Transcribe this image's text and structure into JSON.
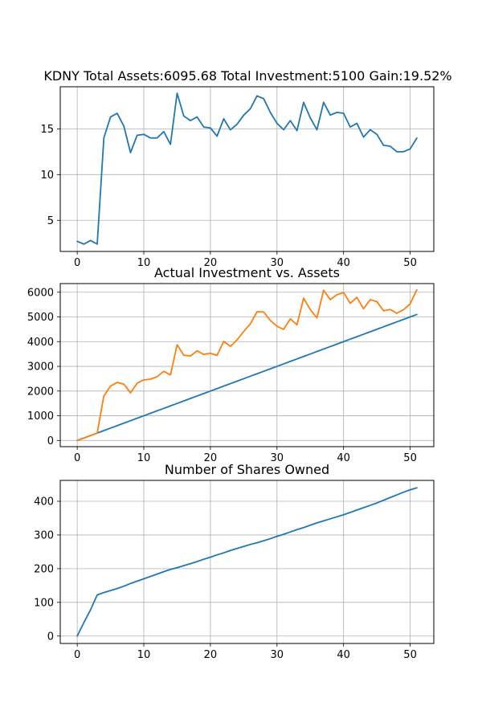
{
  "chart_data": [
    {
      "type": "line",
      "title": "KDNY Total Assets:6095.68  Total Investment:5100  Gain:19.52%",
      "xlabel": "",
      "ylabel": "",
      "xlim": [
        -2.55,
        53.55
      ],
      "ylim": [
        1.6,
        19.6
      ],
      "xticks": [
        0,
        10,
        20,
        30,
        40,
        50
      ],
      "yticks": [
        5,
        10,
        15
      ],
      "grid": true,
      "series": [
        {
          "color": "#1f77b4",
          "x": [
            0,
            1,
            2,
            3,
            4,
            5,
            6,
            7,
            8,
            9,
            10,
            11,
            12,
            13,
            14,
            15,
            16,
            17,
            18,
            19,
            20,
            21,
            22,
            23,
            24,
            25,
            26,
            27,
            28,
            29,
            30,
            31,
            32,
            33,
            34,
            35,
            36,
            37,
            38,
            39,
            40,
            41,
            42,
            43,
            44,
            45,
            46,
            47,
            48,
            49,
            50,
            51
          ],
          "values": [
            2.7,
            2.4,
            2.8,
            2.4,
            14.0,
            16.3,
            16.7,
            15.3,
            12.4,
            14.3,
            14.4,
            14.0,
            14.0,
            14.7,
            13.3,
            18.9,
            16.4,
            15.9,
            16.3,
            15.2,
            15.1,
            14.2,
            16.1,
            14.9,
            15.5,
            16.5,
            17.2,
            18.6,
            18.3,
            16.8,
            15.6,
            14.9,
            15.9,
            14.8,
            17.9,
            16.2,
            14.9,
            17.9,
            16.5,
            16.8,
            16.7,
            15.2,
            15.6,
            14.1,
            14.9,
            14.4,
            13.2,
            13.1,
            12.5,
            12.5,
            12.8,
            14.0
          ]
        }
      ]
    },
    {
      "type": "line",
      "title": "Actual Investment vs. Assets",
      "xlabel": "",
      "ylabel": "",
      "xlim": [
        -2.55,
        53.55
      ],
      "ylim": [
        -250,
        6350
      ],
      "xticks": [
        0,
        10,
        20,
        30,
        40,
        50
      ],
      "yticks": [
        0,
        1000,
        2000,
        3000,
        4000,
        5000,
        6000
      ],
      "grid": true,
      "series": [
        {
          "color": "#1f77b4",
          "x": [
            0,
            1,
            2,
            3,
            4,
            5,
            6,
            7,
            8,
            9,
            10,
            11,
            12,
            13,
            14,
            15,
            16,
            17,
            18,
            19,
            20,
            21,
            22,
            23,
            24,
            25,
            26,
            27,
            28,
            29,
            30,
            31,
            32,
            33,
            34,
            35,
            36,
            37,
            38,
            39,
            40,
            41,
            42,
            43,
            44,
            45,
            46,
            47,
            48,
            49,
            50,
            51
          ],
          "values": [
            0,
            100,
            200,
            300,
            400,
            500,
            600,
            700,
            800,
            900,
            1000,
            1100,
            1200,
            1300,
            1400,
            1500,
            1600,
            1700,
            1800,
            1900,
            2000,
            2100,
            2200,
            2300,
            2400,
            2500,
            2600,
            2700,
            2800,
            2900,
            3000,
            3100,
            3200,
            3300,
            3400,
            3500,
            3600,
            3700,
            3800,
            3900,
            4000,
            4100,
            4200,
            4300,
            4400,
            4500,
            4600,
            4700,
            4800,
            4900,
            5000,
            5100
          ]
        },
        {
          "color": "#ff7f0e",
          "x": [
            0,
            1,
            2,
            3,
            4,
            5,
            6,
            7,
            8,
            9,
            10,
            11,
            12,
            13,
            14,
            15,
            16,
            17,
            18,
            19,
            20,
            21,
            22,
            23,
            24,
            25,
            26,
            27,
            28,
            29,
            30,
            31,
            32,
            33,
            34,
            35,
            36,
            37,
            38,
            39,
            40,
            41,
            42,
            43,
            44,
            45,
            46,
            47,
            48,
            49,
            50,
            51
          ],
          "values": [
            0,
            100,
            200,
            300,
            1800,
            2200,
            2350,
            2280,
            1930,
            2320,
            2450,
            2480,
            2580,
            2800,
            2650,
            3870,
            3450,
            3420,
            3630,
            3480,
            3530,
            3440,
            4010,
            3810,
            4070,
            4410,
            4720,
            5210,
            5200,
            4860,
            4620,
            4500,
            4920,
            4680,
            5760,
            5300,
            4960,
            6080,
            5700,
            5900,
            5990,
            5550,
            5790,
            5330,
            5700,
            5620,
            5250,
            5300,
            5150,
            5290,
            5530,
            6100
          ]
        }
      ]
    },
    {
      "type": "line",
      "title": "Number of Shares Owned",
      "xlabel": "",
      "ylabel": "",
      "xlim": [
        -2.55,
        53.55
      ],
      "ylim": [
        -22,
        462
      ],
      "xticks": [
        0,
        10,
        20,
        30,
        40,
        50
      ],
      "yticks": [
        0,
        100,
        200,
        300,
        400
      ],
      "grid": true,
      "series": [
        {
          "color": "#1f77b4",
          "x": [
            0,
            1,
            2,
            3,
            4,
            5,
            6,
            7,
            8,
            9,
            10,
            11,
            12,
            13,
            14,
            15,
            16,
            17,
            18,
            19,
            20,
            21,
            22,
            23,
            24,
            25,
            26,
            27,
            28,
            29,
            30,
            31,
            32,
            33,
            34,
            35,
            36,
            37,
            38,
            39,
            40,
            41,
            42,
            43,
            44,
            45,
            46,
            47,
            48,
            49,
            50,
            51
          ],
          "values": [
            0,
            40,
            78,
            122,
            129,
            135,
            141,
            148,
            156,
            163,
            170,
            177,
            184,
            191,
            198,
            203,
            209,
            215,
            221,
            228,
            234,
            241,
            247,
            254,
            260,
            266,
            272,
            277,
            283,
            289,
            296,
            302,
            309,
            316,
            322,
            329,
            336,
            342,
            348,
            354,
            360,
            367,
            374,
            381,
            388,
            395,
            403,
            411,
            419,
            427,
            434,
            440
          ]
        }
      ]
    }
  ]
}
